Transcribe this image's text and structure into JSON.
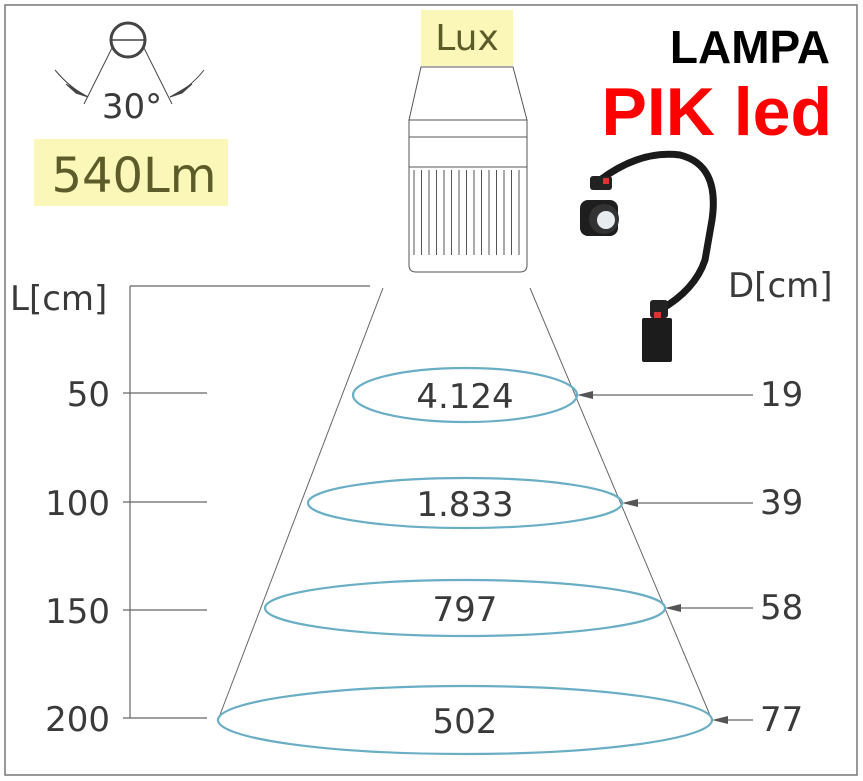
{
  "header": {
    "title_line1": "LAMPA",
    "title_line2": "PIK led"
  },
  "specs": {
    "beam_angle": "30°",
    "luminous_flux": "540Lm",
    "unit_lux": "Lux"
  },
  "axes": {
    "left_label": "L[cm]",
    "right_label": "D[cm]"
  },
  "rows": [
    {
      "distance": "50",
      "lux": "4.124",
      "diameter": "19"
    },
    {
      "distance": "100",
      "lux": "1.833",
      "diameter": "39"
    },
    {
      "distance": "150",
      "lux": "797",
      "diameter": "58"
    },
    {
      "distance": "200",
      "lux": "502",
      "diameter": "77"
    }
  ],
  "colors": {
    "highlight": "#fbf7b8",
    "ellipse": "#6aaec6",
    "title_red": "#ff0000",
    "text": "#3a3a3a"
  }
}
